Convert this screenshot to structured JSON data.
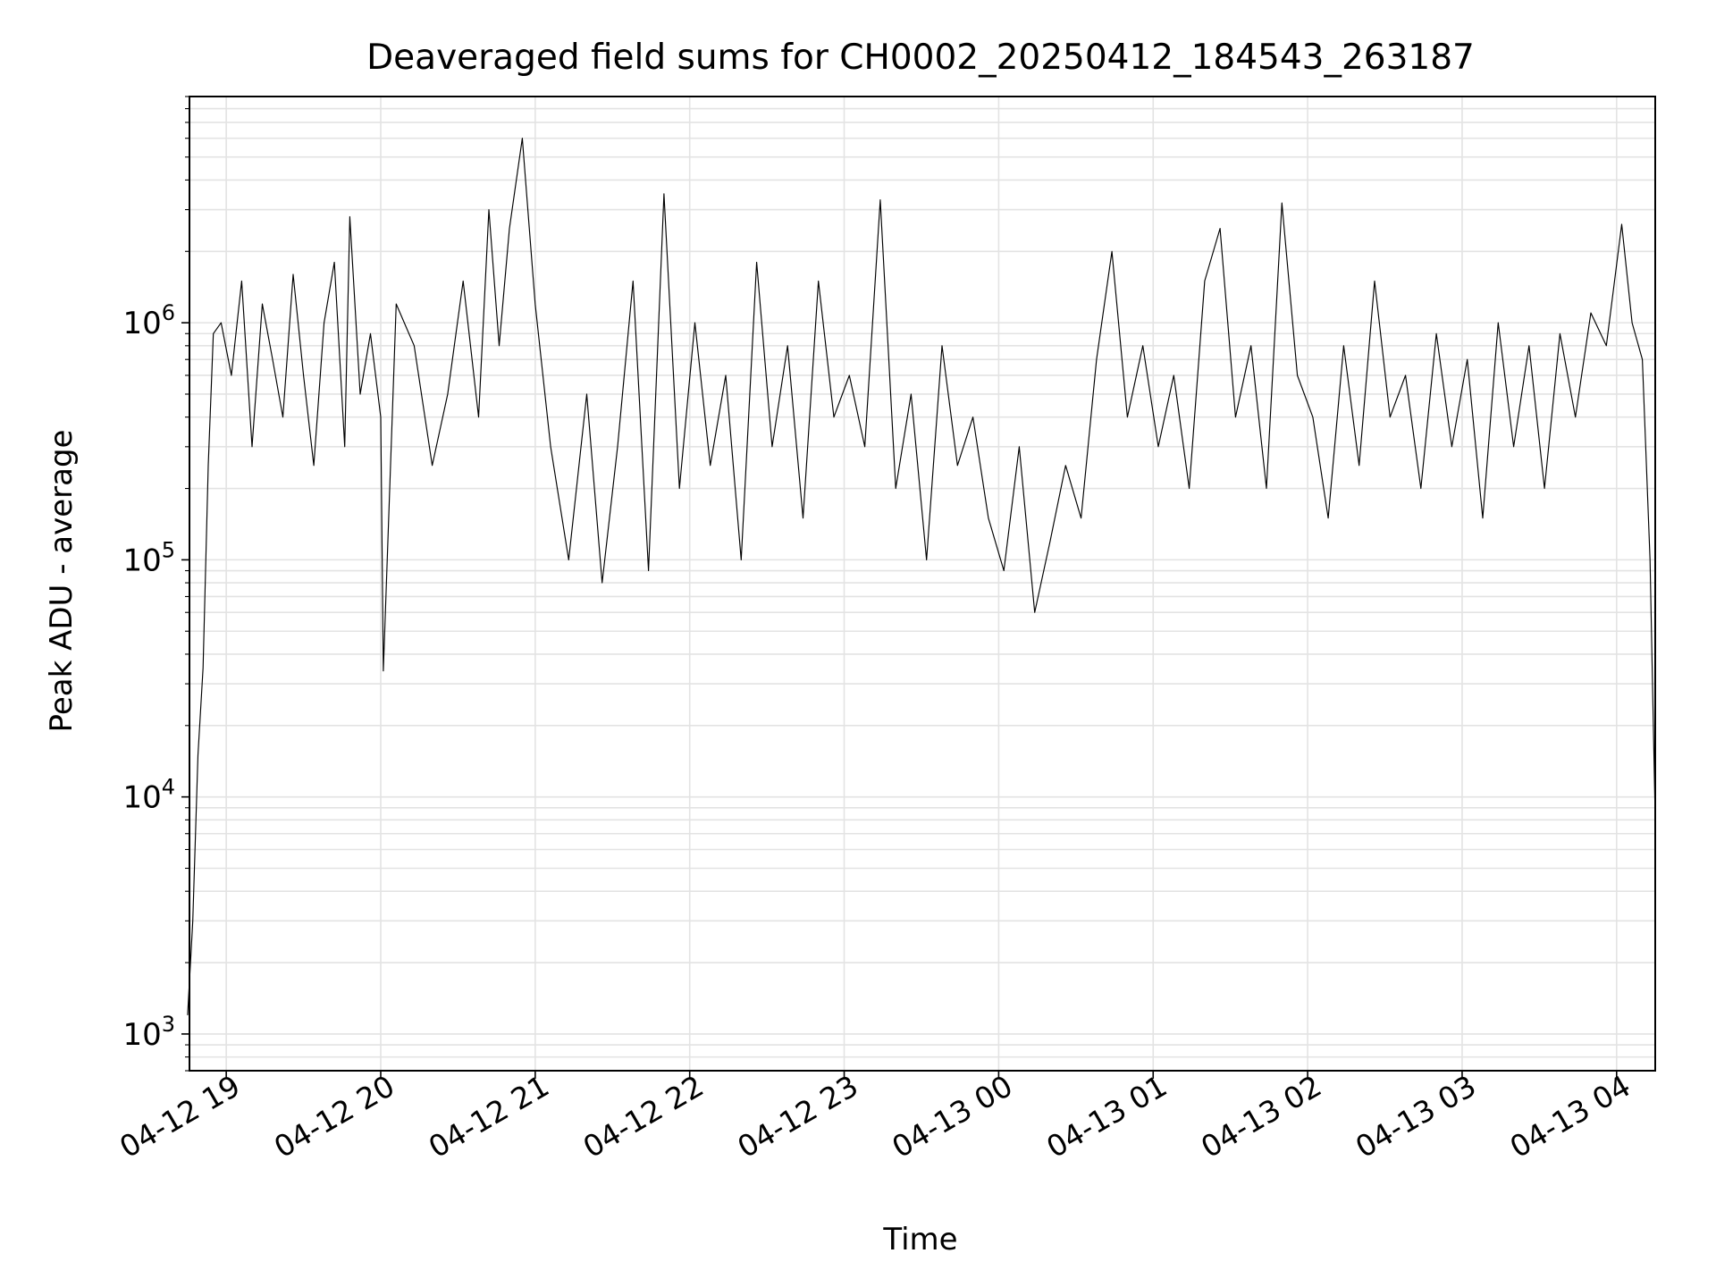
{
  "chart_data": {
    "type": "line",
    "title": "Deaveraged field sums for CH0002_20250412_184543_263187",
    "xlabel": "Time",
    "ylabel": "Peak ADU - average",
    "y_scale": "log",
    "ylim": [
      700,
      9000000
    ],
    "xlim": [
      "2025-04-12 18:45:43",
      "2025-04-13 04:15:00"
    ],
    "grid": "on (major and minor)",
    "x_ticks": [
      {
        "label": "04-12 19",
        "t": "2025-04-12 19:00"
      },
      {
        "label": "04-12 20",
        "t": "2025-04-12 20:00"
      },
      {
        "label": "04-12 21",
        "t": "2025-04-12 21:00"
      },
      {
        "label": "04-12 22",
        "t": "2025-04-12 22:00"
      },
      {
        "label": "04-12 23",
        "t": "2025-04-12 23:00"
      },
      {
        "label": "04-13 00",
        "t": "2025-04-13 00:00"
      },
      {
        "label": "04-13 01",
        "t": "2025-04-13 01:00"
      },
      {
        "label": "04-13 02",
        "t": "2025-04-13 02:00"
      },
      {
        "label": "04-13 03",
        "t": "2025-04-13 03:00"
      },
      {
        "label": "04-13 04",
        "t": "2025-04-13 04:00"
      }
    ],
    "y_ticks": [
      {
        "base": "10",
        "exp": "3",
        "value": 1000
      },
      {
        "base": "10",
        "exp": "4",
        "value": 10000
      },
      {
        "base": "10",
        "exp": "5",
        "value": 100000
      },
      {
        "base": "10",
        "exp": "6",
        "value": 1000000
      }
    ],
    "series": [
      {
        "x": [
          "2025-04-12 18:45",
          "2025-04-12 18:47",
          "2025-04-12 18:49",
          "2025-04-12 18:51",
          "2025-04-12 18:53",
          "2025-04-12 18:55",
          "2025-04-12 18:58",
          "2025-04-12 19:02",
          "2025-04-12 19:06",
          "2025-04-12 19:10",
          "2025-04-12 19:14",
          "2025-04-12 19:18",
          "2025-04-12 19:22",
          "2025-04-12 19:26",
          "2025-04-12 19:30",
          "2025-04-12 19:34",
          "2025-04-12 19:38",
          "2025-04-12 19:42",
          "2025-04-12 19:46",
          "2025-04-12 19:48",
          "2025-04-12 19:52",
          "2025-04-12 19:56",
          "2025-04-12 20:00",
          "2025-04-12 20:01",
          "2025-04-12 20:06",
          "2025-04-12 20:13",
          "2025-04-12 20:20",
          "2025-04-12 20:26",
          "2025-04-12 20:32",
          "2025-04-12 20:38",
          "2025-04-12 20:42",
          "2025-04-12 20:46",
          "2025-04-12 20:50",
          "2025-04-12 20:55",
          "2025-04-12 21:00",
          "2025-04-12 21:06",
          "2025-04-12 21:13",
          "2025-04-12 21:20",
          "2025-04-12 21:26",
          "2025-04-12 21:32",
          "2025-04-12 21:38",
          "2025-04-12 21:44",
          "2025-04-12 21:50",
          "2025-04-12 21:56",
          "2025-04-12 22:02",
          "2025-04-12 22:08",
          "2025-04-12 22:14",
          "2025-04-12 22:20",
          "2025-04-12 22:26",
          "2025-04-12 22:32",
          "2025-04-12 22:38",
          "2025-04-12 22:44",
          "2025-04-12 22:50",
          "2025-04-12 22:56",
          "2025-04-12 23:02",
          "2025-04-12 23:08",
          "2025-04-12 23:14",
          "2025-04-12 23:20",
          "2025-04-12 23:26",
          "2025-04-12 23:32",
          "2025-04-12 23:38",
          "2025-04-12 23:44",
          "2025-04-12 23:50",
          "2025-04-12 23:56",
          "2025-04-13 00:02",
          "2025-04-13 00:08",
          "2025-04-13 00:14",
          "2025-04-13 00:20",
          "2025-04-13 00:26",
          "2025-04-13 00:32",
          "2025-04-13 00:38",
          "2025-04-13 00:44",
          "2025-04-13 00:50",
          "2025-04-13 00:56",
          "2025-04-13 01:02",
          "2025-04-13 01:08",
          "2025-04-13 01:14",
          "2025-04-13 01:20",
          "2025-04-13 01:26",
          "2025-04-13 01:32",
          "2025-04-13 01:38",
          "2025-04-13 01:44",
          "2025-04-13 01:50",
          "2025-04-13 01:56",
          "2025-04-13 02:02",
          "2025-04-13 02:08",
          "2025-04-13 02:14",
          "2025-04-13 02:20",
          "2025-04-13 02:26",
          "2025-04-13 02:32",
          "2025-04-13 02:38",
          "2025-04-13 02:44",
          "2025-04-13 02:50",
          "2025-04-13 02:56",
          "2025-04-13 03:02",
          "2025-04-13 03:08",
          "2025-04-13 03:14",
          "2025-04-13 03:20",
          "2025-04-13 03:26",
          "2025-04-13 03:32",
          "2025-04-13 03:38",
          "2025-04-13 03:44",
          "2025-04-13 03:50",
          "2025-04-13 03:56",
          "2025-04-13 04:02",
          "2025-04-13 04:06",
          "2025-04-13 04:10",
          "2025-04-13 04:13",
          "2025-04-13 04:15"
        ],
        "y": [
          1200,
          3000,
          15000,
          35000,
          250000,
          900000,
          1000000,
          600000,
          1500000,
          300000,
          1200000,
          700000,
          400000,
          1600000,
          600000,
          250000,
          1000000,
          1800000,
          300000,
          2800000,
          500000,
          900000,
          400000,
          34000,
          1200000,
          800000,
          250000,
          500000,
          1500000,
          400000,
          3000000,
          800000,
          2500000,
          6000000,
          1200000,
          300000,
          100000,
          500000,
          80000,
          300000,
          1500000,
          90000,
          3500000,
          200000,
          1000000,
          250000,
          600000,
          100000,
          1800000,
          300000,
          800000,
          150000,
          1500000,
          400000,
          600000,
          300000,
          3300000,
          200000,
          500000,
          100000,
          800000,
          250000,
          400000,
          150000,
          90000,
          300000,
          60000,
          120000,
          250000,
          150000,
          700000,
          2000000,
          400000,
          800000,
          300000,
          600000,
          200000,
          1500000,
          2500000,
          400000,
          800000,
          200000,
          3200000,
          600000,
          400000,
          150000,
          800000,
          250000,
          1500000,
          400000,
          600000,
          200000,
          900000,
          300000,
          700000,
          150000,
          1000000,
          300000,
          800000,
          200000,
          900000,
          400000,
          1100000,
          800000,
          2600000,
          1000000,
          700000,
          100000,
          8000
        ]
      }
    ]
  }
}
